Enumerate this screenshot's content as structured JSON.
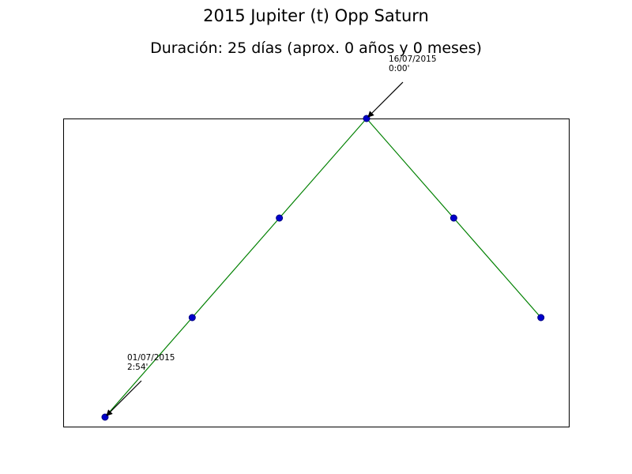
{
  "chart_data": {
    "type": "line",
    "title": "2015 Jupiter (t) Opp Saturn",
    "subtitle": "Duración: 25 días (aprox. 0 años y 0 meses)",
    "xlabel": "",
    "ylabel": "",
    "grid": false,
    "x": [
      0,
      1,
      2,
      3,
      4,
      5
    ],
    "y": [
      174,
      177,
      180,
      183,
      180,
      177
    ],
    "xlim": [
      -0.48,
      5.32
    ],
    "ylim": [
      174,
      183
    ],
    "line_color": "#008000",
    "marker_face_color": "#0000cc",
    "marker_edge_color": "#000080",
    "annotations": [
      {
        "point_index": 0,
        "date": "01/07/2015",
        "value": "2:54'"
      },
      {
        "point_index": 3,
        "date": "16/07/2015",
        "value": "0:00'"
      }
    ]
  }
}
